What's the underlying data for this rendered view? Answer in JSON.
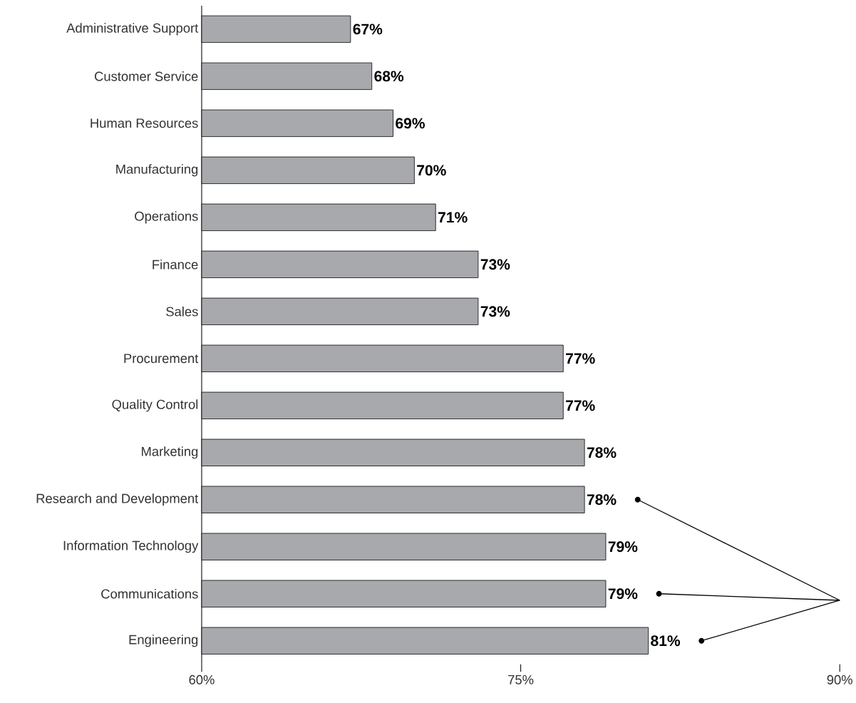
{
  "chart_data": {
    "type": "bar",
    "orientation": "horizontal",
    "categories": [
      "Administrative Support",
      "Customer Service",
      "Human Resources",
      "Manufacturing",
      "Operations",
      "Finance",
      "Sales",
      "Procurement",
      "Quality Control",
      "Marketing",
      "Research and Development",
      "Information Technology",
      "Communications",
      "Engineering"
    ],
    "values": [
      67,
      68,
      69,
      70,
      71,
      73,
      73,
      77,
      77,
      78,
      78,
      79,
      79,
      81
    ],
    "value_labels": [
      "67%",
      "68%",
      "69%",
      "70%",
      "71%",
      "73%",
      "73%",
      "77%",
      "77%",
      "78%",
      "78%",
      "79%",
      "79%",
      "81%"
    ],
    "color": "#a7a9ac",
    "xlim": [
      60,
      90
    ],
    "xticks": [
      {
        "value": 60,
        "label": "60%"
      },
      {
        "value": 75,
        "label": "75%"
      },
      {
        "value": 90,
        "label": "90%"
      }
    ]
  }
}
